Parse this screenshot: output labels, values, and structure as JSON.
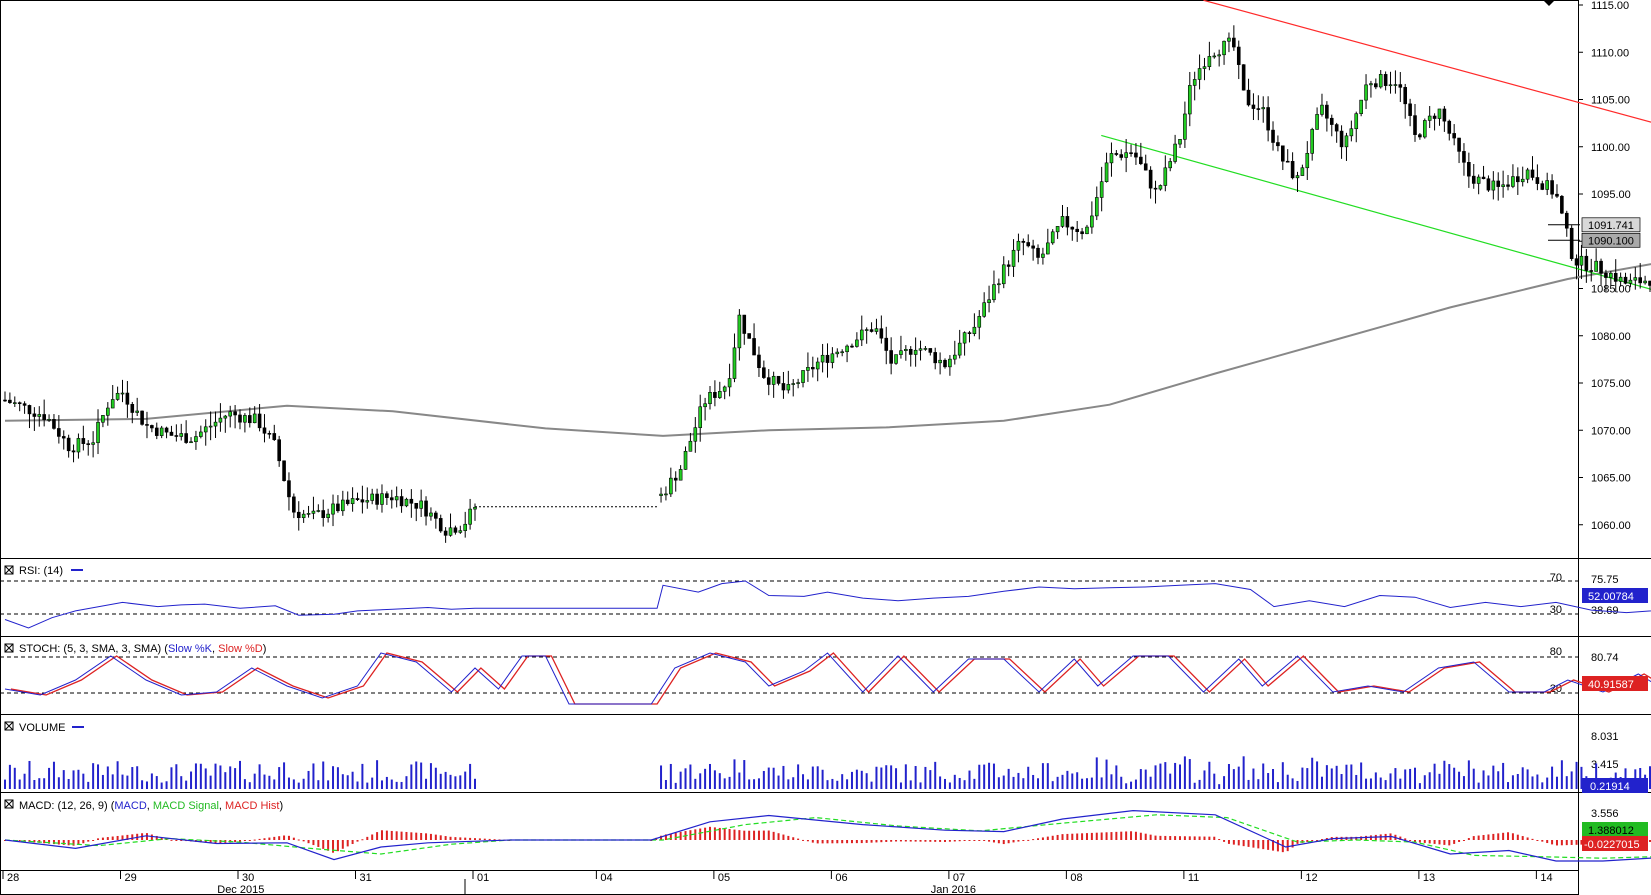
{
  "chart_data": {
    "type": "candlestick",
    "instrument_price_scale": {
      "ticks": [
        "1115.00",
        "1110.00",
        "1105.00",
        "1100.00",
        "1095.00",
        "1090.00",
        "1085.00",
        "1080.00",
        "1075.00",
        "1070.00",
        "1065.00",
        "1060.00"
      ],
      "range": [
        1056.5,
        1115.5
      ]
    },
    "price_tags": {
      "last": "1091.741",
      "moving_average": "1090.100"
    },
    "x_axis": {
      "day_labels": [
        "28",
        "29",
        "30",
        "31",
        "01",
        "04",
        "05",
        "06",
        "07",
        "08",
        "11",
        "12",
        "13",
        "14"
      ],
      "month_labels": [
        "Dec 2015",
        "Jan 2016"
      ]
    },
    "trend_lines": {
      "resistance": {
        "color": "#ff2a2a",
        "from": [
          10.2,
          1115.5
        ],
        "to": [
          16.4,
          1094.5
        ]
      },
      "support": {
        "color": "#22dd22",
        "from": [
          9.33,
          1101.2
        ],
        "to": [
          16.4,
          1076.6
        ]
      }
    },
    "moving_average": {
      "color": "#888888",
      "points": [
        [
          0,
          1071
        ],
        [
          1.2,
          1071.2
        ],
        [
          2.4,
          1072.6
        ],
        [
          3.3,
          1072.0
        ],
        [
          4.6,
          1070.2
        ],
        [
          5.6,
          1069.4
        ],
        [
          6.5,
          1070.0
        ],
        [
          7.5,
          1070.3
        ],
        [
          8.5,
          1071.0
        ],
        [
          9.4,
          1072.7
        ],
        [
          10.3,
          1076.0
        ],
        [
          11.3,
          1079.5
        ],
        [
          12.3,
          1083.0
        ],
        [
          13.3,
          1086.0
        ],
        [
          14.2,
          1088.0
        ],
        [
          15.2,
          1089.3
        ],
        [
          16.2,
          1090.1
        ]
      ]
    },
    "candles_shown": "Hourly candles, Dec 28 2015 - Jan 14 2016",
    "rsi": {
      "label": "RSI: (14)",
      "color": "#2222cc",
      "levels": [
        "70",
        "30"
      ],
      "scale": [
        "75.75",
        "38.69"
      ],
      "last": "52.00784",
      "points": [
        [
          0,
          30
        ],
        [
          0.2,
          20
        ],
        [
          0.4,
          32
        ],
        [
          0.6,
          40
        ],
        [
          0.8,
          45
        ],
        [
          1.0,
          50
        ],
        [
          1.3,
          45
        ],
        [
          1.5,
          47
        ],
        [
          1.7,
          48
        ],
        [
          2.0,
          43
        ],
        [
          2.3,
          46
        ],
        [
          2.5,
          35
        ],
        [
          2.8,
          36
        ],
        [
          3.0,
          40
        ],
        [
          3.3,
          42
        ],
        [
          3.6,
          44
        ],
        [
          3.8,
          42
        ],
        [
          4.0,
          43
        ],
        [
          4.3,
          43
        ],
        [
          5.55,
          43
        ],
        [
          5.6,
          70
        ],
        [
          5.9,
          62
        ],
        [
          6.1,
          72
        ],
        [
          6.3,
          75
        ],
        [
          6.5,
          58
        ],
        [
          6.8,
          57
        ],
        [
          7.0,
          62
        ],
        [
          7.3,
          55
        ],
        [
          7.6,
          52
        ],
        [
          7.9,
          55
        ],
        [
          8.2,
          57
        ],
        [
          8.5,
          63
        ],
        [
          8.8,
          68
        ],
        [
          9.1,
          66
        ],
        [
          9.4,
          67
        ],
        [
          9.7,
          68
        ],
        [
          10.0,
          70
        ],
        [
          10.3,
          72
        ],
        [
          10.6,
          65
        ],
        [
          10.8,
          45
        ],
        [
          11.1,
          52
        ],
        [
          11.4,
          45
        ],
        [
          11.7,
          58
        ],
        [
          12.0,
          56
        ],
        [
          12.3,
          44
        ],
        [
          12.6,
          50
        ],
        [
          12.9,
          45
        ],
        [
          13.2,
          50
        ],
        [
          13.5,
          41
        ],
        [
          13.8,
          38
        ],
        [
          14.2,
          42
        ],
        [
          14.5,
          40
        ],
        [
          14.8,
          38
        ],
        [
          15.1,
          40
        ],
        [
          15.4,
          65
        ],
        [
          15.7,
          70
        ],
        [
          16.0,
          68
        ],
        [
          16.2,
          58
        ],
        [
          16.4,
          52
        ]
      ]
    },
    "stochastic": {
      "label": "STOCH: (5, 3, SMA, 3, SMA)",
      "series": [
        {
          "name": "Slow %K",
          "color": "#2222cc"
        },
        {
          "name": "Slow %D",
          "color": "#dd2222"
        }
      ],
      "levels": [
        "80",
        "20"
      ],
      "scale": [
        "80.74"
      ],
      "last": "40.91587",
      "points_k": [
        [
          0,
          25
        ],
        [
          0.3,
          15
        ],
        [
          0.6,
          40
        ],
        [
          0.9,
          80
        ],
        [
          1.2,
          40
        ],
        [
          1.5,
          15
        ],
        [
          1.8,
          20
        ],
        [
          2.1,
          60
        ],
        [
          2.4,
          30
        ],
        [
          2.7,
          10
        ],
        [
          3.0,
          30
        ],
        [
          3.2,
          85
        ],
        [
          3.5,
          70
        ],
        [
          3.8,
          20
        ],
        [
          4.0,
          60
        ],
        [
          4.2,
          25
        ],
        [
          4.4,
          80
        ],
        [
          4.6,
          80
        ],
        [
          4.8,
          0
        ],
        [
          5.5,
          0
        ],
        [
          5.7,
          60
        ],
        [
          6.0,
          85
        ],
        [
          6.3,
          70
        ],
        [
          6.5,
          30
        ],
        [
          6.8,
          55
        ],
        [
          7.0,
          85
        ],
        [
          7.3,
          20
        ],
        [
          7.6,
          80
        ],
        [
          7.9,
          20
        ],
        [
          8.2,
          75
        ],
        [
          8.5,
          75
        ],
        [
          8.8,
          20
        ],
        [
          9.1,
          75
        ],
        [
          9.3,
          30
        ],
        [
          9.6,
          80
        ],
        [
          9.9,
          80
        ],
        [
          10.2,
          20
        ],
        [
          10.5,
          75
        ],
        [
          10.7,
          30
        ],
        [
          11.0,
          80
        ],
        [
          11.3,
          20
        ],
        [
          11.6,
          30
        ],
        [
          11.9,
          20
        ],
        [
          12.2,
          60
        ],
        [
          12.5,
          70
        ],
        [
          12.8,
          20
        ],
        [
          13.1,
          20
        ],
        [
          13.3,
          40
        ],
        [
          13.6,
          20
        ],
        [
          13.9,
          50
        ],
        [
          14.2,
          15
        ],
        [
          14.5,
          25
        ],
        [
          14.8,
          15
        ],
        [
          15.1,
          40
        ],
        [
          15.4,
          60
        ],
        [
          15.7,
          85
        ],
        [
          16.0,
          70
        ],
        [
          16.2,
          20
        ],
        [
          16.4,
          38
        ]
      ]
    },
    "volume": {
      "label": "VOLUME",
      "color": "#2222cc",
      "scale": [
        "8.031",
        "3.415"
      ],
      "last": "0.21914"
    },
    "macd": {
      "label": "MACD: (12, 26, 9)",
      "series": [
        {
          "name": "MACD",
          "color": "#2222cc"
        },
        {
          "name": "MACD Signal",
          "color": "#22dd22"
        },
        {
          "name": "MACD Hist",
          "color": "#dd2222"
        }
      ],
      "scale": [
        "3.556"
      ],
      "last_macd": "1.388012",
      "last_hist": "-0.0227015",
      "points_macd": [
        [
          0,
          0
        ],
        [
          0.6,
          -1.2
        ],
        [
          1.2,
          0.6
        ],
        [
          1.8,
          -0.5
        ],
        [
          2.4,
          -0.4
        ],
        [
          2.8,
          -2.8
        ],
        [
          3.2,
          -1.0
        ],
        [
          3.6,
          -0.4
        ],
        [
          4.3,
          0
        ],
        [
          5.5,
          0
        ],
        [
          6.0,
          2.6
        ],
        [
          6.5,
          3.5
        ],
        [
          7.3,
          2.2
        ],
        [
          8.0,
          1.4
        ],
        [
          8.5,
          1.2
        ],
        [
          9.0,
          3.0
        ],
        [
          9.6,
          4.2
        ],
        [
          10.3,
          3.6
        ],
        [
          10.9,
          -1.0
        ],
        [
          11.3,
          0.2
        ],
        [
          11.8,
          0.5
        ],
        [
          12.3,
          -2.0
        ],
        [
          12.8,
          -1.5
        ],
        [
          13.2,
          -3.0
        ],
        [
          13.6,
          -3.0
        ],
        [
          14.1,
          -2.5
        ],
        [
          14.6,
          -1.8
        ],
        [
          15.2,
          -1.7
        ],
        [
          15.6,
          2.3
        ],
        [
          16.0,
          2.2
        ],
        [
          16.3,
          1.4
        ]
      ],
      "points_signal": [
        [
          0,
          0
        ],
        [
          0.8,
          -0.8
        ],
        [
          1.4,
          0.2
        ],
        [
          2.0,
          -0.3
        ],
        [
          2.6,
          -1.2
        ],
        [
          3.2,
          -2.0
        ],
        [
          3.8,
          -0.6
        ],
        [
          4.3,
          0
        ],
        [
          5.6,
          0
        ],
        [
          6.3,
          2.2
        ],
        [
          6.9,
          3.2
        ],
        [
          7.6,
          2.0
        ],
        [
          8.3,
          1.3
        ],
        [
          9.0,
          2.4
        ],
        [
          9.8,
          3.6
        ],
        [
          10.4,
          3.2
        ],
        [
          11.0,
          -0.3
        ],
        [
          11.5,
          0
        ],
        [
          12.0,
          -0.3
        ],
        [
          12.5,
          -2.2
        ],
        [
          13.1,
          -2.4
        ],
        [
          13.6,
          -2.6
        ],
        [
          14.2,
          -2.3
        ],
        [
          14.8,
          -1.9
        ],
        [
          15.3,
          -1.0
        ],
        [
          15.8,
          1.9
        ],
        [
          16.3,
          1.5
        ]
      ]
    }
  }
}
